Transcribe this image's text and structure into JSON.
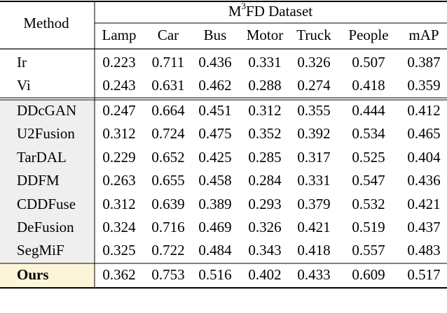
{
  "table": {
    "method_header": "Method",
    "dataset_header": {
      "prefix": "M",
      "superscript": "3",
      "suffix": "FD Dataset"
    },
    "columns": [
      "Lamp",
      "Car",
      "Bus",
      "Motor",
      "Truck",
      "People",
      "mAP"
    ],
    "rows": [
      {
        "method": "Ir",
        "bold": false,
        "group": "source",
        "cells": [
          "0.223",
          "0.711",
          "0.436",
          "0.331",
          "0.326",
          "0.507",
          "0.387"
        ],
        "colors": [
          null,
          null,
          null,
          null,
          null,
          null,
          null
        ]
      },
      {
        "method": "Vi",
        "bold": false,
        "group": "source",
        "cells": [
          "0.243",
          "0.631",
          "0.462",
          "0.288",
          "0.274",
          "0.418",
          "0.359"
        ],
        "colors": [
          null,
          null,
          null,
          null,
          null,
          null,
          null
        ]
      },
      {
        "method": "DDcGAN",
        "bold": false,
        "group": "compared",
        "cells": [
          "0.247",
          "0.664",
          "0.451",
          "0.312",
          "0.355",
          "0.444",
          "0.412"
        ],
        "colors": [
          null,
          null,
          null,
          null,
          null,
          null,
          null
        ]
      },
      {
        "method": "U2Fusion",
        "bold": false,
        "group": "compared",
        "cells": [
          "0.312",
          "0.724",
          "0.475",
          "0.352",
          "0.392",
          "0.534",
          "0.465"
        ],
        "colors": [
          null,
          "#1a1aff",
          null,
          "#1a1aff",
          null,
          null,
          null
        ]
      },
      {
        "method": "TarDAL",
        "bold": false,
        "group": "compared",
        "cells": [
          "0.229",
          "0.652",
          "0.425",
          "0.285",
          "0.317",
          "0.525",
          "0.404"
        ],
        "colors": [
          null,
          null,
          null,
          null,
          null,
          null,
          null
        ]
      },
      {
        "method": "DDFM",
        "bold": false,
        "group": "compared",
        "cells": [
          "0.263",
          "0.655",
          "0.458",
          "0.284",
          "0.331",
          "0.547",
          "0.436"
        ],
        "colors": [
          null,
          null,
          null,
          null,
          null,
          null,
          null
        ]
      },
      {
        "method": "CDDFuse",
        "bold": false,
        "group": "compared",
        "cells": [
          "0.312",
          "0.639",
          "0.389",
          "0.293",
          "0.379",
          "0.532",
          "0.421"
        ],
        "colors": [
          null,
          null,
          null,
          null,
          null,
          null,
          null
        ]
      },
      {
        "method": "DeFusion",
        "bold": false,
        "group": "compared",
        "cells": [
          "0.324",
          "0.716",
          "0.469",
          "0.326",
          "0.421",
          "0.519",
          "0.437"
        ],
        "colors": [
          null,
          null,
          null,
          null,
          "#1a1aff",
          null,
          null
        ]
      },
      {
        "method": "SegMiF",
        "bold": false,
        "group": "compared",
        "cells": [
          "0.325",
          "0.722",
          "0.484",
          "0.343",
          "0.418",
          "0.557",
          "0.483"
        ],
        "colors": [
          "#1a1aff",
          null,
          "#1a1aff",
          null,
          null,
          "#1a1aff",
          "#1a1aff"
        ]
      },
      {
        "method": "Ours",
        "bold": true,
        "group": "ours",
        "cells": [
          "0.362",
          "0.753",
          "0.516",
          "0.402",
          "0.433",
          "0.609",
          "0.517"
        ],
        "colors": [
          "#e8141b",
          "#e8141b",
          "#e8141b",
          "#e8141b",
          "#e8141b",
          "#e8141b",
          "#e8141b"
        ]
      }
    ]
  }
}
